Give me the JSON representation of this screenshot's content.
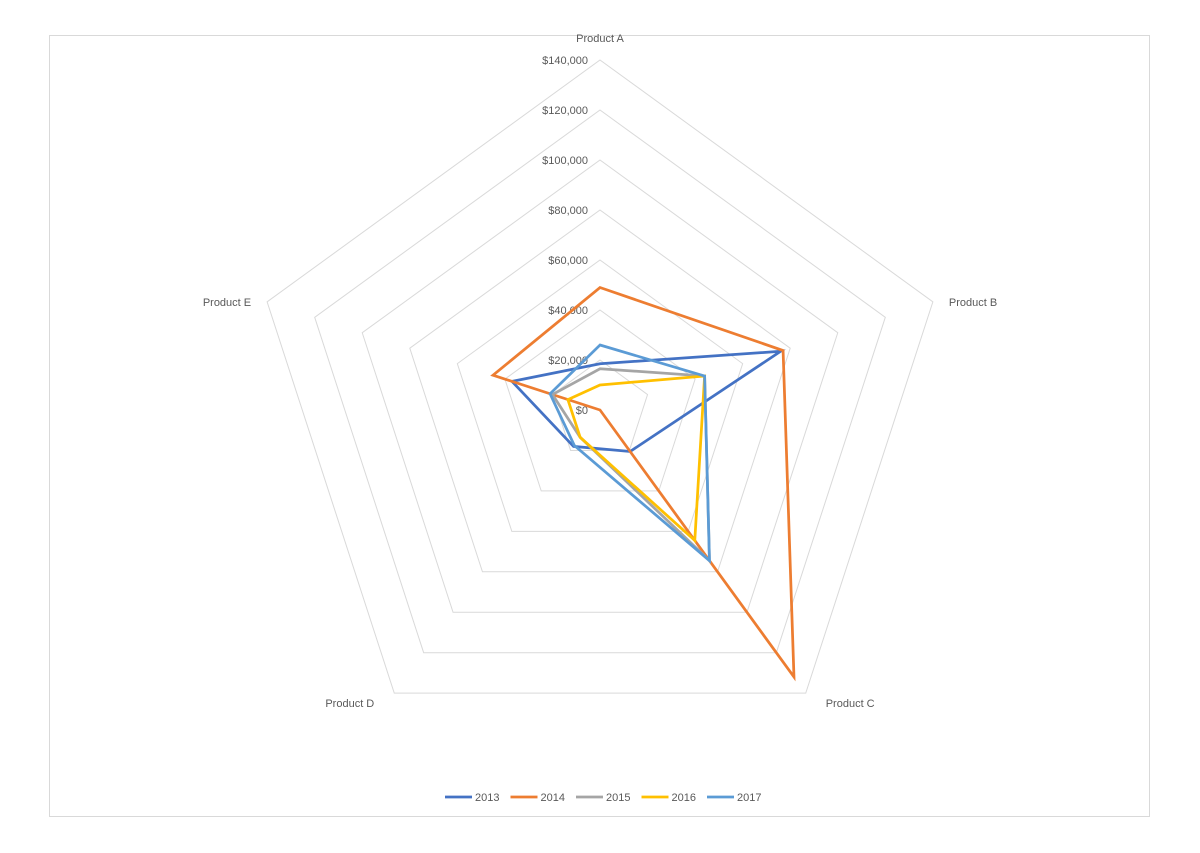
{
  "chart_data": {
    "type": "radar",
    "categories": [
      "Product A",
      "Product B",
      "Product C",
      "Product D",
      "Product E"
    ],
    "rmin": 0,
    "rmax": 140000,
    "tick_step": 20000,
    "tick_labels": [
      "$0",
      "$20,000",
      "$40,000",
      "$60,000",
      "$80,000",
      "$100,000",
      "$120,000",
      "$140,000"
    ],
    "grid": true,
    "legend_position": "bottom",
    "series": [
      {
        "name": "2013",
        "color": "#4472C4",
        "values": [
          18500,
          76000,
          20500,
          18000,
          37000
        ]
      },
      {
        "name": "2014",
        "color": "#ED7D31",
        "values": [
          49000,
          77000,
          132000,
          0,
          45000
        ]
      },
      {
        "name": "2015",
        "color": "#A5A5A5",
        "values": [
          16500,
          44000,
          74500,
          13500,
          20000
        ]
      },
      {
        "name": "2016",
        "color": "#FFC000",
        "values": [
          10000,
          44000,
          64500,
          13500,
          13500
        ]
      },
      {
        "name": "2017",
        "color": "#5B9BD5",
        "values": [
          26000,
          44000,
          74500,
          17500,
          21000
        ]
      }
    ]
  }
}
